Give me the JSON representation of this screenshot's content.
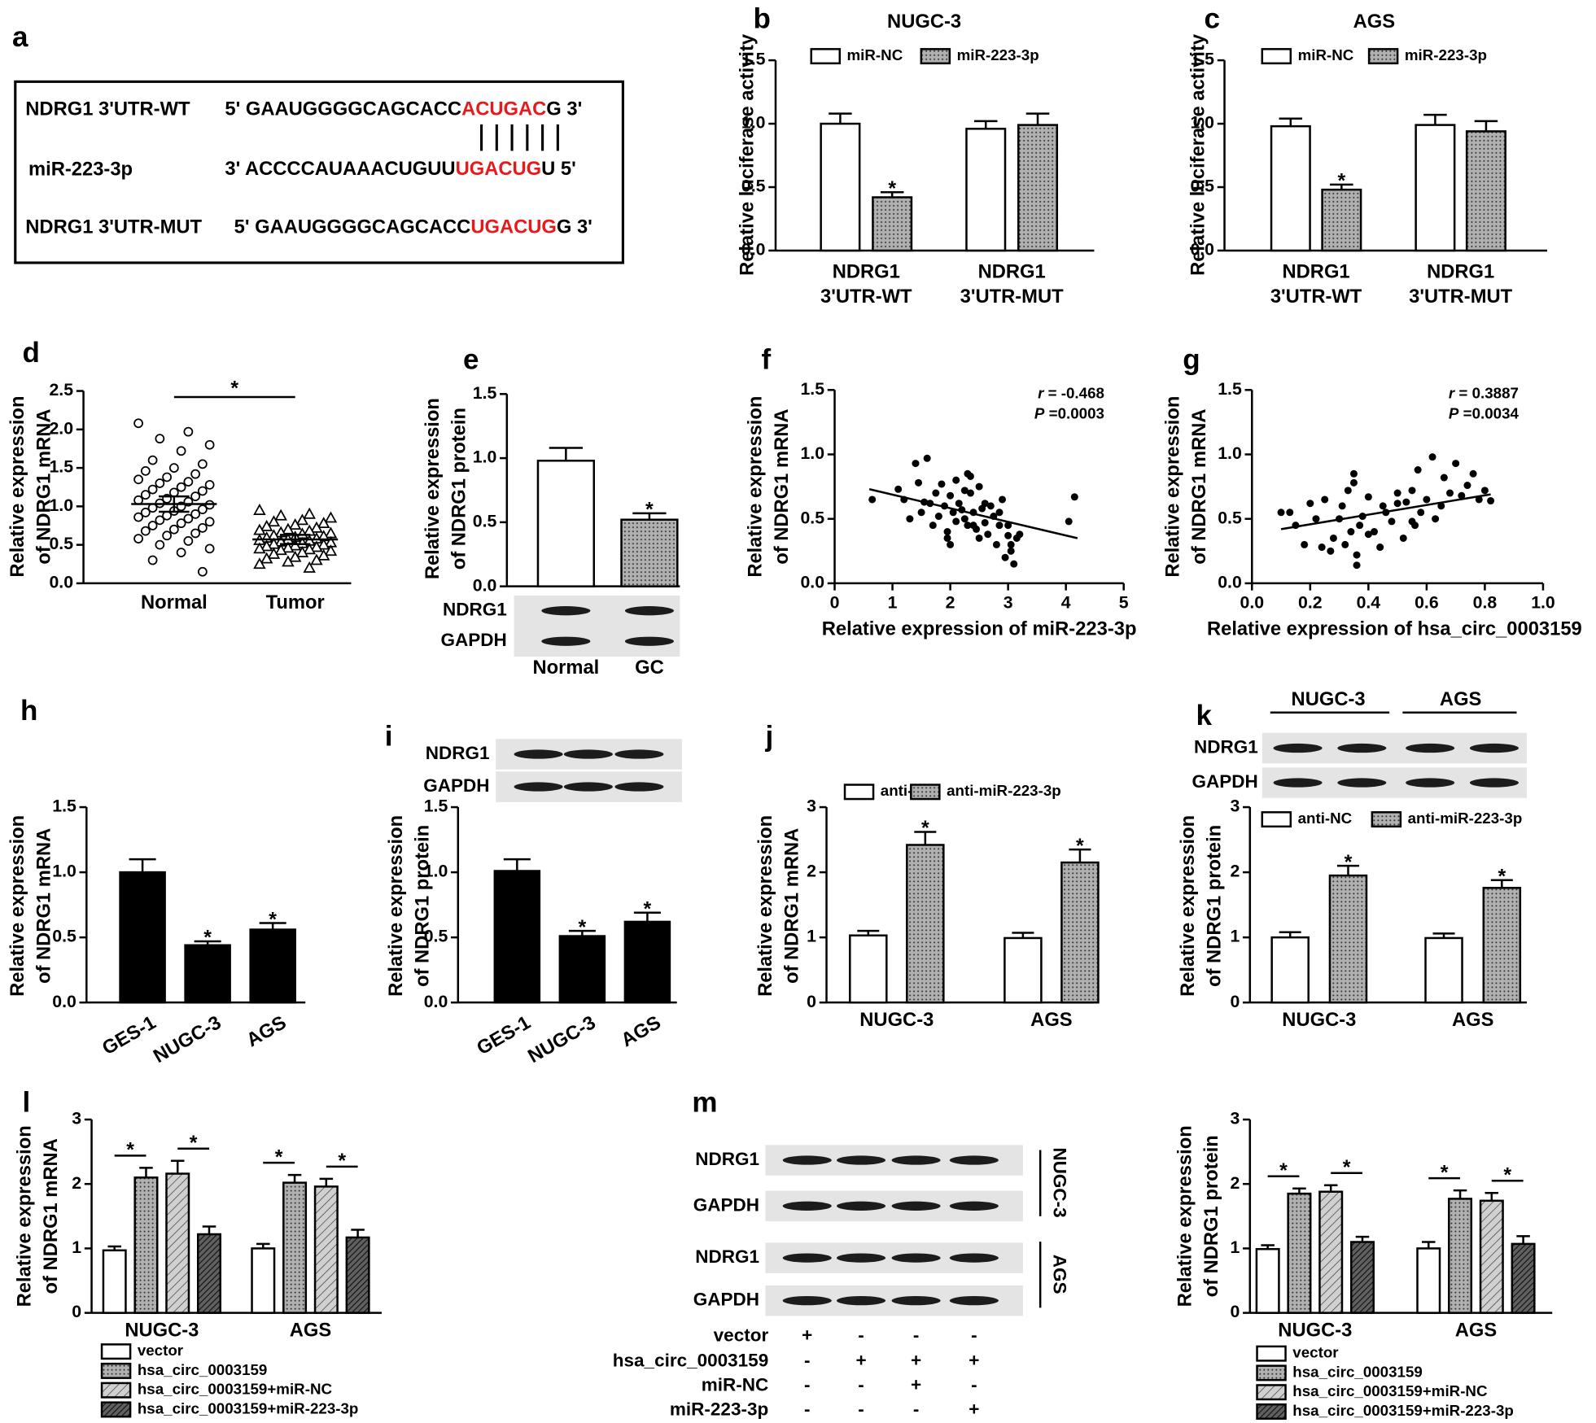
{
  "panel_a": {
    "label": "a",
    "highlight_color": "#e8191b",
    "rows": [
      {
        "name": "NDRG1 3'UTR-WT",
        "parts": [
          "5' GAAUGGGGCAGCACC",
          "ACUGAC",
          "G 3'"
        ]
      },
      {
        "name": "miR-223-3p",
        "parts": [
          "3' ACCCCAUAAACUGUU",
          "UGACUG",
          "U 5'"
        ]
      },
      {
        "name": "NDRG1 3'UTR-MUT",
        "parts": [
          "5' GAAUGGGGCAGCACC",
          "UGACUG",
          "G 3'"
        ]
      }
    ]
  },
  "chart_data": [
    {
      "panel": "b",
      "type": "bar",
      "title": "NUGC-3",
      "ylabel": [
        "Relative luciferase activity"
      ],
      "legend": "top",
      "categories": [
        [
          "NDRG1",
          "3'UTR-WT"
        ],
        [
          "NDRG1",
          "3'UTR-MUT"
        ]
      ],
      "series": [
        {
          "name": "miR-NC",
          "color": "#ffffff",
          "values": [
            1.0,
            0.96
          ],
          "errors": [
            0.08,
            0.06
          ]
        },
        {
          "name": "miR-223-3p",
          "color": "#b0b0b0",
          "pattern": "dots",
          "values": [
            0.42,
            0.99
          ],
          "errors": [
            0.04,
            0.09
          ],
          "significance": [
            "*",
            null
          ]
        }
      ],
      "ylim": [
        0,
        1.5
      ],
      "yticks": [
        {
          "value": 0,
          "label": "0.0"
        },
        0.5,
        {
          "value": 1,
          "label": "1.0"
        },
        1.5
      ]
    },
    {
      "panel": "c",
      "type": "bar",
      "title": "AGS",
      "ylabel": [
        "Relative luciferase activity"
      ],
      "legend": "top",
      "categories": [
        [
          "NDRG1",
          "3'UTR-WT"
        ],
        [
          "NDRG1",
          "3'UTR-MUT"
        ]
      ],
      "series": [
        {
          "name": "miR-NC",
          "color": "#ffffff",
          "values": [
            0.98,
            0.99
          ],
          "errors": [
            0.06,
            0.08
          ]
        },
        {
          "name": "miR-223-3p",
          "color": "#b0b0b0",
          "pattern": "dots",
          "values": [
            0.48,
            0.94
          ],
          "errors": [
            0.04,
            0.08
          ],
          "significance": [
            "*",
            null
          ]
        }
      ],
      "ylim": [
        0,
        1.5
      ],
      "yticks": [
        {
          "value": 0,
          "label": "0.0"
        },
        0.5,
        {
          "value": 1,
          "label": "1.0"
        },
        1.5
      ]
    },
    {
      "panel": "d",
      "type": "strip",
      "ylabel": [
        "Relative expression",
        "of NDRG1 mRNA"
      ],
      "categories": [
        "Normal",
        "Tumor"
      ],
      "markers": [
        "circle",
        "triangle"
      ],
      "values": [
        [
          2.08,
          1.97,
          1.88,
          1.8,
          1.72,
          1.6,
          1.55,
          1.5,
          1.46,
          1.42,
          1.38,
          1.35,
          1.32,
          1.3,
          1.28,
          1.25,
          1.22,
          1.2,
          1.18,
          1.15,
          1.13,
          1.1,
          1.08,
          1.06,
          1.04,
          1.02,
          1.0,
          0.98,
          0.96,
          0.94,
          0.92,
          0.9,
          0.88,
          0.86,
          0.84,
          0.82,
          0.8,
          0.78,
          0.75,
          0.72,
          0.7,
          0.68,
          0.65,
          0.62,
          0.58,
          0.55,
          0.5,
          0.45,
          0.4,
          0.3,
          0.15
        ],
        [
          0.95,
          0.9,
          0.88,
          0.85,
          0.82,
          0.8,
          0.78,
          0.76,
          0.74,
          0.72,
          0.7,
          0.69,
          0.68,
          0.66,
          0.65,
          0.64,
          0.62,
          0.61,
          0.6,
          0.59,
          0.58,
          0.57,
          0.56,
          0.55,
          0.54,
          0.53,
          0.52,
          0.51,
          0.5,
          0.49,
          0.48,
          0.47,
          0.46,
          0.45,
          0.44,
          0.43,
          0.42,
          0.4,
          0.38,
          0.36,
          0.34,
          0.32,
          0.3,
          0.28,
          0.25,
          0.2
        ]
      ],
      "means": [
        1.03,
        0.57
      ],
      "errors": [
        0.1,
        0.06
      ],
      "significance": "*",
      "ylim": [
        0,
        2.5
      ],
      "yticks": [
        {
          "value": 0,
          "label": "0.0"
        },
        0.5,
        {
          "value": 1,
          "label": "1.0"
        },
        1.5,
        {
          "value": 2,
          "label": "2.0"
        },
        2.5
      ]
    },
    {
      "panel": "e",
      "type": "bar",
      "ylabel": [
        "Relative expression",
        "of NDRG1 protein"
      ],
      "categories": [
        "Normal",
        "GC"
      ],
      "series": [
        {
          "colors": [
            "#ffffff",
            "#b0b0b0"
          ],
          "patterns": [
            null,
            "dots"
          ],
          "values": [
            0.98,
            0.52
          ],
          "errors": [
            0.1,
            0.05
          ],
          "significance": [
            null,
            "*"
          ]
        }
      ],
      "ylim": [
        0,
        1.5
      ],
      "yticks": [
        {
          "value": 0,
          "label": "0.0"
        },
        0.5,
        {
          "value": 1,
          "label": "1.0"
        },
        1.5
      ]
    },
    {
      "panel": "f",
      "type": "scatter",
      "ylabel": [
        "Relative expression",
        "of NDRG1 mRNA"
      ],
      "xlabel": "Relative expression of miR-223-3p",
      "x": [
        0.65,
        1.1,
        1.2,
        1.4,
        1.5,
        1.55,
        1.6,
        1.65,
        1.7,
        1.75,
        1.8,
        1.85,
        1.9,
        1.95,
        2.0,
        2.0,
        2.05,
        2.1,
        2.1,
        2.15,
        2.2,
        2.25,
        2.3,
        2.3,
        2.35,
        2.4,
        2.45,
        2.5,
        2.5,
        2.55,
        2.6,
        2.65,
        2.7,
        2.75,
        2.8,
        2.85,
        2.9,
        2.95,
        3.0,
        3.0,
        3.05,
        3.1,
        3.15,
        3.2,
        1.3,
        1.45,
        1.95,
        2.25,
        2.6,
        2.85,
        3.05,
        4.05,
        4.15,
        2.4,
        2.35
      ],
      "y": [
        0.65,
        0.73,
        0.65,
        0.93,
        0.55,
        0.63,
        0.97,
        0.62,
        0.45,
        0.7,
        0.52,
        0.77,
        0.6,
        0.4,
        0.68,
        0.3,
        0.55,
        0.8,
        0.48,
        0.62,
        0.57,
        0.5,
        0.85,
        0.45,
        0.7,
        0.55,
        0.42,
        0.75,
        0.35,
        0.58,
        0.47,
        0.38,
        0.6,
        0.52,
        0.3,
        0.45,
        0.65,
        0.2,
        0.37,
        0.45,
        0.25,
        0.15,
        0.35,
        0.38,
        0.5,
        0.78,
        0.35,
        0.72,
        0.62,
        0.55,
        0.3,
        0.48,
        0.67,
        0.45,
        0.83
      ],
      "fit": {
        "x": [
          0.6,
          4.2
        ],
        "y": [
          0.73,
          0.35
        ]
      },
      "stats": [
        {
          "symbol": "r",
          "text": " = -0.468"
        },
        {
          "symbol": "P",
          "text": " =0.0003"
        }
      ],
      "xlim": [
        0,
        5
      ],
      "xticks": [
        0,
        1,
        2,
        3,
        4,
        5
      ],
      "ylim": [
        0,
        1.5
      ],
      "yticks": [
        {
          "value": 0,
          "label": "0.0"
        },
        0.5,
        {
          "value": 1,
          "label": "1.0"
        },
        1.5
      ]
    },
    {
      "panel": "g",
      "type": "scatter",
      "ylabel": [
        "Relative expression",
        "of NDRG1 mRNA"
      ],
      "xlabel": "Relative expression of hsa_circ_0003159",
      "x": [
        0.1,
        0.13,
        0.15,
        0.18,
        0.2,
        0.22,
        0.24,
        0.25,
        0.27,
        0.28,
        0.3,
        0.31,
        0.32,
        0.33,
        0.34,
        0.35,
        0.35,
        0.36,
        0.37,
        0.38,
        0.4,
        0.4,
        0.42,
        0.44,
        0.45,
        0.46,
        0.48,
        0.5,
        0.52,
        0.53,
        0.55,
        0.56,
        0.57,
        0.58,
        0.6,
        0.62,
        0.63,
        0.65,
        0.66,
        0.68,
        0.7,
        0.72,
        0.74,
        0.76,
        0.78,
        0.8,
        0.82,
        0.36,
        0.55,
        0.5
      ],
      "y": [
        0.55,
        0.55,
        0.45,
        0.3,
        0.62,
        0.5,
        0.28,
        0.65,
        0.25,
        0.35,
        0.5,
        0.6,
        0.3,
        0.72,
        0.4,
        0.85,
        0.78,
        0.22,
        0.45,
        0.52,
        0.67,
        0.38,
        0.4,
        0.28,
        0.6,
        0.55,
        0.48,
        0.7,
        0.35,
        0.63,
        0.72,
        0.45,
        0.88,
        0.55,
        0.65,
        0.98,
        0.5,
        0.6,
        0.82,
        0.7,
        0.93,
        0.68,
        0.76,
        0.85,
        0.65,
        0.72,
        0.64,
        0.14,
        0.48,
        0.62
      ],
      "fit": {
        "x": [
          0.1,
          0.82
        ],
        "y": [
          0.42,
          0.69
        ]
      },
      "stats": [
        {
          "symbol": "r",
          "text": " = 0.3887"
        },
        {
          "symbol": "P",
          "text": " =0.0034"
        }
      ],
      "xlim": [
        0,
        1
      ],
      "xticks": [
        {
          "value": 0,
          "label": "0.0"
        },
        0.2,
        0.4,
        0.6,
        0.8,
        {
          "value": 1,
          "label": "1.0"
        }
      ],
      "ylim": [
        0,
        1.5
      ],
      "yticks": [
        {
          "value": 0,
          "label": "0.0"
        },
        0.5,
        {
          "value": 1,
          "label": "1.0"
        },
        1.5
      ]
    },
    {
      "panel": "h",
      "type": "bar",
      "ylabel": [
        "Relative expression",
        "of NDRG1 mRNA"
      ],
      "rotate_labels": true,
      "categories": [
        "GES-1",
        "NUGC-3",
        "AGS"
      ],
      "series": [
        {
          "color": "#000000",
          "values": [
            1.0,
            0.44,
            0.56
          ],
          "errors": [
            0.1,
            0.03,
            0.05
          ],
          "significance": [
            null,
            "*",
            "*"
          ]
        }
      ],
      "ylim": [
        0,
        1.5
      ],
      "yticks": [
        {
          "value": 0,
          "label": "0.0"
        },
        0.5,
        {
          "value": 1,
          "label": "1.0"
        },
        1.5
      ]
    },
    {
      "panel": "i",
      "type": "bar",
      "ylabel": [
        "Relative expression",
        "of NDRG1 protein"
      ],
      "rotate_labels": true,
      "categories": [
        "GES-1",
        "NUGC-3",
        "AGS"
      ],
      "series": [
        {
          "color": "#000000",
          "values": [
            1.01,
            0.51,
            0.62
          ],
          "errors": [
            0.09,
            0.04,
            0.07
          ],
          "significance": [
            null,
            "*",
            "*"
          ]
        }
      ],
      "ylim": [
        0,
        1.5
      ],
      "yticks": [
        {
          "value": 0,
          "label": "0.0"
        },
        0.5,
        {
          "value": 1,
          "label": "1.0"
        },
        1.5
      ]
    },
    {
      "panel": "j",
      "type": "bar",
      "ylabel": [
        "Relative expression",
        "of NDRG1 mRNA"
      ],
      "legend": "top",
      "categories": [
        "NUGC-3",
        "AGS"
      ],
      "series": [
        {
          "name": "anti-NC",
          "color": "#ffffff",
          "values": [
            1.03,
            0.99
          ],
          "errors": [
            0.07,
            0.08
          ]
        },
        {
          "name": "anti-miR-223-3p",
          "color": "#b0b0b0",
          "pattern": "dots",
          "values": [
            2.42,
            2.15
          ],
          "errors": [
            0.2,
            0.2
          ],
          "significance": [
            "*",
            "*"
          ]
        }
      ],
      "ylim": [
        0,
        3
      ],
      "yticks": [
        0,
        1,
        2,
        3
      ]
    },
    {
      "panel": "k",
      "type": "bar",
      "ylabel": [
        "Relative expression",
        "of NDRG1 protein"
      ],
      "legend": "top",
      "categories": [
        "NUGC-3",
        "AGS"
      ],
      "series": [
        {
          "name": "anti-NC",
          "color": "#ffffff",
          "values": [
            1.0,
            0.99
          ],
          "errors": [
            0.08,
            0.07
          ]
        },
        {
          "name": "anti-miR-223-3p",
          "color": "#b0b0b0",
          "pattern": "dots",
          "values": [
            1.95,
            1.76
          ],
          "errors": [
            0.15,
            0.12
          ],
          "significance": [
            "*",
            "*"
          ]
        }
      ],
      "ylim": [
        0,
        3
      ],
      "yticks": [
        0,
        1,
        2,
        3
      ]
    },
    {
      "panel": "l",
      "type": "bar",
      "ylabel": [
        "Relative expression",
        "of NDRG1 mRNA"
      ],
      "legend": "bottom",
      "significance_style": "bracket",
      "categories": [
        "NUGC-3",
        "AGS"
      ],
      "series": [
        {
          "name": "vector",
          "color": "#ffffff",
          "values": [
            0.97,
            1.0
          ],
          "errors": [
            0.06,
            0.07
          ]
        },
        {
          "name": "hsa_circ_0003159",
          "color": "#b0b0b0",
          "pattern": "dots",
          "values": [
            2.1,
            2.02
          ],
          "errors": [
            0.15,
            0.12
          ],
          "significance": [
            "*",
            "*"
          ]
        },
        {
          "name": "hsa_circ_0003159+miR-NC",
          "color": "#d0d0d0",
          "pattern": "hatch",
          "values": [
            2.16,
            1.96
          ],
          "errors": [
            0.2,
            0.12
          ]
        },
        {
          "name": "hsa_circ_0003159+miR-223-3p",
          "color": "#606060",
          "pattern": "dense",
          "values": [
            1.22,
            1.17
          ],
          "errors": [
            0.12,
            0.12
          ],
          "significance": [
            "*",
            "*"
          ]
        }
      ],
      "ylim": [
        0,
        3
      ],
      "yticks": [
        0,
        1,
        2,
        3
      ]
    },
    {
      "type": "bar",
      "ylabel": [
        "Relative expression",
        "of NDRG1 protein"
      ],
      "legend": "bottom",
      "significance_style": "bracket",
      "categories": [
        "NUGC-3",
        "AGS"
      ],
      "series": [
        {
          "name": "vector",
          "color": "#ffffff",
          "values": [
            0.99,
            1.0
          ],
          "errors": [
            0.06,
            0.1
          ]
        },
        {
          "name": "hsa_circ_0003159",
          "color": "#b0b0b0",
          "pattern": "dots",
          "values": [
            1.85,
            1.77
          ],
          "errors": [
            0.08,
            0.13
          ],
          "significance": [
            "*",
            "*"
          ]
        },
        {
          "name": "hsa_circ_0003159+miR-NC",
          "color": "#d0d0d0",
          "pattern": "hatch",
          "values": [
            1.88,
            1.74
          ],
          "errors": [
            0.1,
            0.12
          ]
        },
        {
          "name": "hsa_circ_0003159+miR-223-3p",
          "color": "#606060",
          "pattern": "dense",
          "values": [
            1.1,
            1.07
          ],
          "errors": [
            0.08,
            0.12
          ],
          "significance": [
            "*",
            "*"
          ]
        }
      ],
      "ylim": [
        0,
        3
      ],
      "yticks": [
        0,
        1,
        2,
        3
      ]
    }
  ],
  "blots": [
    {
      "rows": [
        "NDRG1",
        "GAPDH"
      ]
    },
    {
      "rows": [
        "NDRG1",
        "GAPDH"
      ]
    },
    {
      "header": [
        "NUGC-3",
        "AGS"
      ],
      "rows": [
        "NDRG1",
        "GAPDH"
      ]
    },
    {
      "panel": "m",
      "groups": [
        {
          "label": "NUGC-3",
          "rows": [
            "NDRG1",
            "GAPDH"
          ]
        },
        {
          "label": "AGS",
          "rows": [
            "NDRG1",
            "GAPDH"
          ]
        }
      ],
      "conditions": [
        {
          "name": "vector",
          "signs": [
            "+",
            "-",
            "-",
            "-"
          ]
        },
        {
          "name": "hsa_circ_0003159",
          "signs": [
            "-",
            "+",
            "+",
            "+"
          ]
        },
        {
          "name": "miR-NC",
          "signs": [
            "-",
            "-",
            "+",
            "-"
          ]
        },
        {
          "name": "miR-223-3p",
          "signs": [
            "-",
            "-",
            "-",
            "+"
          ]
        }
      ]
    }
  ]
}
